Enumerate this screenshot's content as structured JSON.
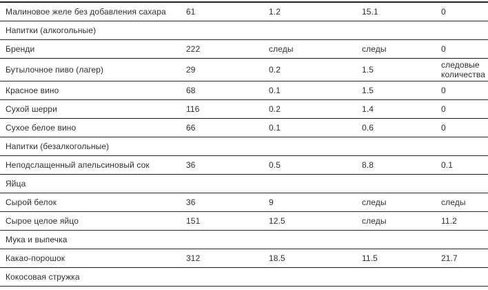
{
  "colors": {
    "background": "#ffffff",
    "text": "#2e2e2e",
    "border": "#232323"
  },
  "table": {
    "rows": [
      {
        "type": "item",
        "name": "Малиновое желе без добавления сахара",
        "values": [
          "61",
          "1.2",
          "15.1",
          "0"
        ]
      },
      {
        "type": "section",
        "name": "Напитки (алкогольные)"
      },
      {
        "type": "item",
        "name": "Бренди",
        "values": [
          "222",
          "следы",
          "следы",
          "0"
        ]
      },
      {
        "type": "item",
        "name": "Бутылочное пиво (лагер)",
        "values": [
          "29",
          "0.2",
          "1.5",
          "следовые количества"
        ]
      },
      {
        "type": "item",
        "name": "Красное вино",
        "values": [
          "68",
          "0.1",
          "1.5",
          "0"
        ]
      },
      {
        "type": "item",
        "name": "Сухой шерри",
        "values": [
          "116",
          "0.2",
          "1.4",
          "0"
        ]
      },
      {
        "type": "item",
        "name": "Сухое белое вино",
        "values": [
          "66",
          "0.1",
          "0.6",
          "0"
        ]
      },
      {
        "type": "section",
        "name": "Напитки (безалкогольные)"
      },
      {
        "type": "item",
        "name": "Неподслащенный апельсиновый сок",
        "values": [
          "36",
          "0.5",
          "8.8",
          "0.1"
        ]
      },
      {
        "type": "section",
        "name": "Яйца"
      },
      {
        "type": "item",
        "name": "Сырой белок",
        "values": [
          "36",
          "9",
          "следы",
          "следы"
        ]
      },
      {
        "type": "item",
        "name": "Сырое целое яйцо",
        "values": [
          "151",
          "12.5",
          "следы",
          "11.2"
        ]
      },
      {
        "type": "section",
        "name": "Мука и выпечка"
      },
      {
        "type": "item",
        "name": "Какао-порошок",
        "values": [
          "312",
          "18.5",
          "11.5",
          "21.7"
        ]
      },
      {
        "type": "item",
        "name": "Кокосовая стружка",
        "values": [
          "",
          "",
          "",
          ""
        ]
      }
    ]
  }
}
